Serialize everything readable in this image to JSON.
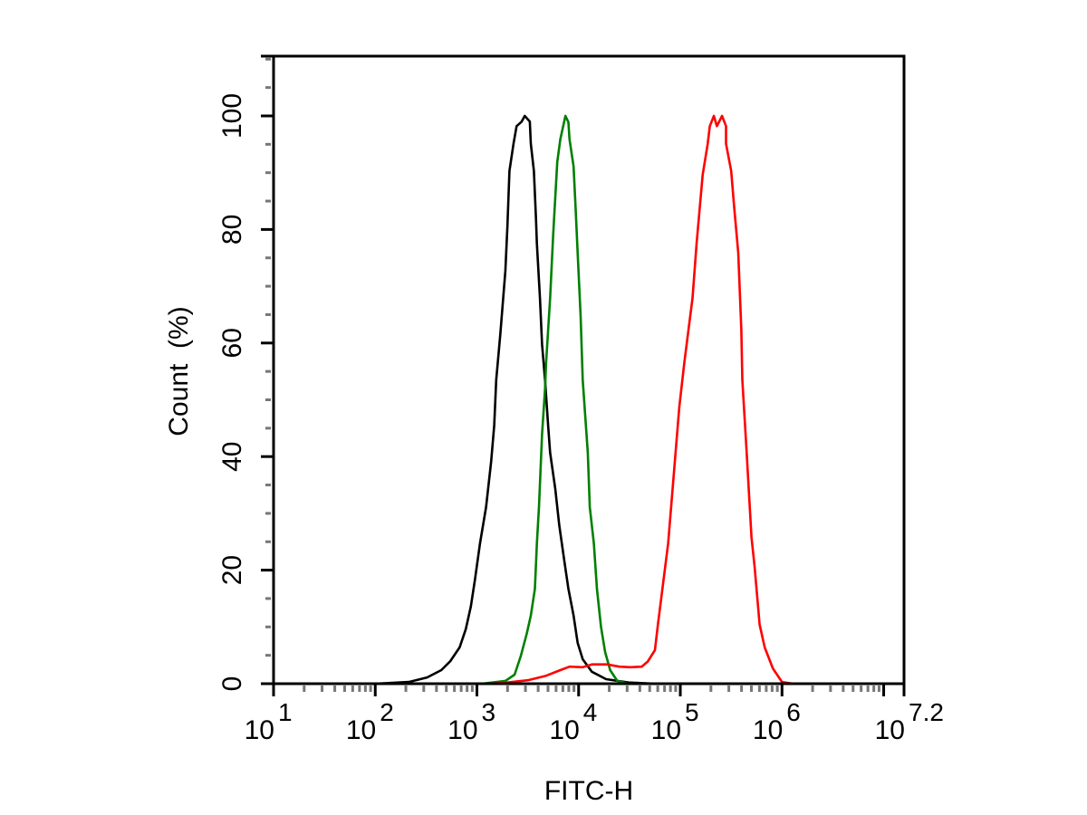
{
  "chart_data": {
    "type": "line",
    "title": "",
    "xlabel": "FITC-H",
    "ylabel": "Count  (%)",
    "xscale": "log10",
    "xlim_log10": [
      1,
      7.2
    ],
    "ylim": [
      0,
      110
    ],
    "grid": false,
    "legend": "none",
    "x_ticks": [
      {
        "base": "10",
        "exp": "1",
        "log10": 1
      },
      {
        "base": "10",
        "exp": "2",
        "log10": 2
      },
      {
        "base": "10",
        "exp": "3",
        "log10": 3
      },
      {
        "base": "10",
        "exp": "4",
        "log10": 4
      },
      {
        "base": "10",
        "exp": "5",
        "log10": 5
      },
      {
        "base": "10",
        "exp": "6",
        "log10": 6
      },
      {
        "base": "10",
        "exp": "7.2",
        "log10": 7.2
      }
    ],
    "y_ticks": [
      {
        "label": "0",
        "value": 0
      },
      {
        "label": "20",
        "value": 20
      },
      {
        "label": "40",
        "value": 40
      },
      {
        "label": "60",
        "value": 60
      },
      {
        "label": "80",
        "value": 80
      },
      {
        "label": "100",
        "value": 100
      }
    ],
    "series": [
      {
        "name": "black",
        "color": "#000000",
        "log10_x": [
          1.0,
          2.0,
          2.33,
          2.51,
          2.65,
          2.74,
          2.83,
          2.89,
          2.94,
          2.98,
          3.03,
          3.09,
          3.14,
          3.17,
          3.19,
          3.23,
          3.28,
          3.3,
          3.32,
          3.36,
          3.39,
          3.44,
          3.47,
          3.52,
          3.53,
          3.56,
          3.58,
          3.59,
          3.62,
          3.64,
          3.67,
          3.7,
          3.72,
          3.77,
          3.81,
          3.86,
          3.9,
          3.95,
          3.99,
          4.04,
          4.13,
          4.27,
          4.49,
          4.76
        ],
        "y": [
          0,
          0,
          0.3,
          1.1,
          2.4,
          4.0,
          6.4,
          9.6,
          13.6,
          18.3,
          24.7,
          31.1,
          39.1,
          45.5,
          53.5,
          61.5,
          72.7,
          80.7,
          90.3,
          95.1,
          98.2,
          99.0,
          100,
          99.0,
          95.1,
          90.3,
          82.3,
          77.5,
          67.9,
          59.8,
          53.5,
          45.5,
          40.7,
          34.3,
          27.9,
          21.5,
          16.7,
          12.0,
          7.2,
          4.3,
          2.1,
          0.8,
          0.2,
          0
        ]
      },
      {
        "name": "green",
        "color": "#008000",
        "log10_x": [
          1.0,
          3.05,
          3.28,
          3.37,
          3.43,
          3.49,
          3.53,
          3.57,
          3.59,
          3.61,
          3.64,
          3.67,
          3.68,
          3.72,
          3.75,
          3.79,
          3.82,
          3.87,
          3.9,
          3.91,
          3.95,
          3.97,
          3.99,
          4.02,
          4.04,
          4.09,
          4.11,
          4.15,
          4.18,
          4.22,
          4.26,
          4.31,
          4.38,
          4.49,
          7.2
        ],
        "y": [
          0,
          0,
          0.5,
          1.6,
          4.8,
          8.8,
          12.0,
          16.7,
          24.7,
          31.1,
          43.9,
          51.9,
          56.6,
          67.9,
          79.1,
          91.9,
          95.9,
          100,
          98.9,
          95.9,
          91.1,
          83.9,
          75.9,
          64.7,
          53.5,
          40.7,
          31.1,
          24.7,
          16.7,
          10.0,
          5.6,
          2.4,
          0.5,
          0,
          0
        ]
      },
      {
        "name": "red",
        "color": "#ff0000",
        "log10_x": [
          1.0,
          3.12,
          3.3,
          3.5,
          3.68,
          3.82,
          3.91,
          4.04,
          4.13,
          4.28,
          4.4,
          4.51,
          4.62,
          4.68,
          4.75,
          4.78,
          4.88,
          4.99,
          5.04,
          5.12,
          5.16,
          5.22,
          5.27,
          5.29,
          5.33,
          5.36,
          5.41,
          5.45,
          5.45,
          5.5,
          5.53,
          5.57,
          5.6,
          5.61,
          5.65,
          5.7,
          5.73,
          5.78,
          5.83,
          5.91,
          6.0,
          6.11,
          7.2
        ],
        "y": [
          0,
          0,
          0.2,
          0.6,
          1.4,
          2.4,
          3.0,
          2.9,
          3.4,
          3.4,
          3.0,
          2.9,
          3.0,
          3.9,
          5.9,
          10.4,
          24.7,
          48.7,
          56.6,
          67.9,
          77.5,
          89.6,
          95.1,
          98.2,
          100,
          98.2,
          100,
          98.2,
          95.1,
          90.3,
          83.9,
          75.9,
          62.3,
          53.5,
          41.5,
          25.8,
          20.7,
          10.4,
          6.4,
          2.7,
          0.3,
          0,
          0
        ]
      }
    ]
  }
}
